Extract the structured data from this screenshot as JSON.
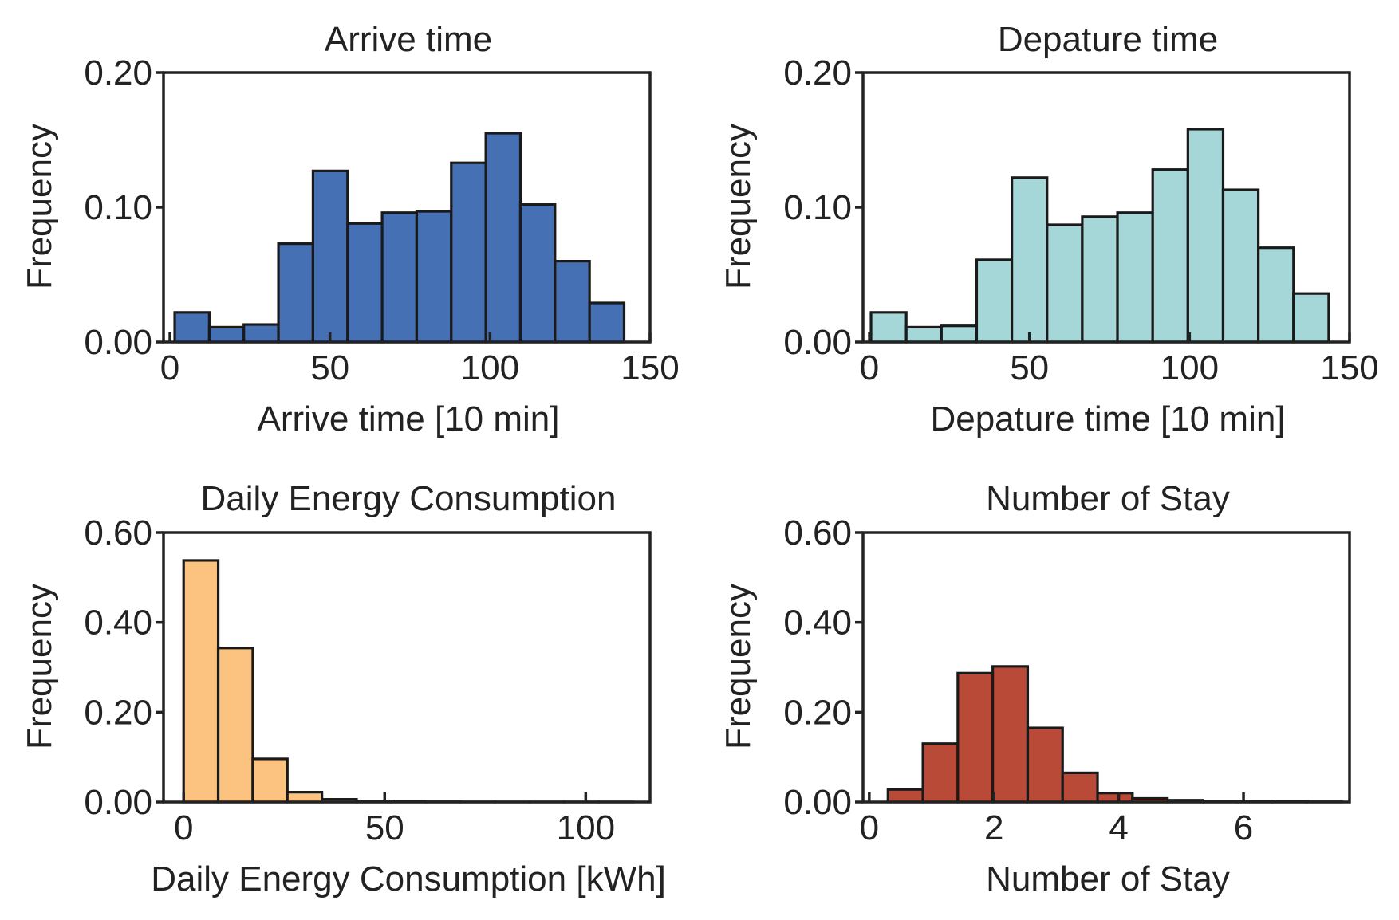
{
  "chart_data": [
    {
      "type": "bar",
      "title": "Arrive time",
      "xlabel": "Arrive time [10 min]",
      "ylabel": "Frequency",
      "xlim": [
        -2,
        150
      ],
      "ylim": [
        0,
        0.2
      ],
      "xticks": [
        "0",
        "50",
        "100",
        "150"
      ],
      "xtick_values": [
        0,
        50,
        100,
        150
      ],
      "yticks": [
        "0.00",
        "0.10",
        "0.20"
      ],
      "ytick_values": [
        0,
        0.1,
        0.2
      ],
      "color": "#4570b4",
      "grid": false,
      "bin_edges": [
        1.5,
        12.3,
        23.1,
        33.9,
        44.7,
        55.5,
        66.3,
        77.1,
        87.9,
        98.7,
        109.5,
        120.3,
        131.1,
        141.9
      ],
      "values": [
        0.022,
        0.011,
        0.013,
        0.073,
        0.127,
        0.088,
        0.096,
        0.097,
        0.133,
        0.155,
        0.102,
        0.06,
        0.029
      ]
    },
    {
      "type": "bar",
      "title": "Depature time",
      "xlabel": "Depature time [10 min]",
      "ylabel": "Frequency",
      "xlim": [
        -2,
        150
      ],
      "ylim": [
        0,
        0.2
      ],
      "xticks": [
        "0",
        "50",
        "100",
        "150"
      ],
      "xtick_values": [
        0,
        50,
        100,
        150
      ],
      "yticks": [
        "0.00",
        "0.10",
        "0.20"
      ],
      "ytick_values": [
        0,
        0.1,
        0.2
      ],
      "color": "#a5d6d8",
      "grid": false,
      "bin_edges": [
        0.5,
        11.5,
        22.5,
        33.5,
        44.5,
        55.5,
        66.5,
        77.5,
        88.5,
        99.5,
        110.5,
        121.5,
        132.5,
        143.5
      ],
      "values": [
        0.022,
        0.011,
        0.012,
        0.061,
        0.122,
        0.087,
        0.093,
        0.096,
        0.128,
        0.158,
        0.113,
        0.07,
        0.036
      ]
    },
    {
      "type": "bar",
      "title": "Daily Energy Consumption",
      "xlabel": "Daily Energy Consumption [kWh]",
      "ylabel": "Frequency",
      "xlim": [
        -5,
        116
      ],
      "ylim": [
        0,
        0.6
      ],
      "xticks": [
        "0",
        "50",
        "100"
      ],
      "xtick_values": [
        0,
        50,
        100
      ],
      "yticks": [
        "0.00",
        "0.20",
        "0.40",
        "0.60"
      ],
      "ytick_values": [
        0,
        0.2,
        0.4,
        0.6
      ],
      "color": "#fbc37f",
      "grid": false,
      "bin_edges": [
        0,
        8.6,
        17.2,
        25.8,
        34.4,
        43,
        51.6,
        60.2,
        68.8,
        77.4,
        86,
        94.6,
        103.2,
        111.8
      ],
      "values": [
        0.538,
        0.343,
        0.096,
        0.022,
        0.006,
        0.002,
        0.001,
        0.0005,
        0.0003,
        0.0002,
        0.0002,
        0.0002,
        0.0002
      ]
    },
    {
      "type": "bar",
      "title": "Number of Stay",
      "xlabel": "Number of Stay",
      "ylabel": "Frequency",
      "xlim": [
        -0.1,
        7.7
      ],
      "ylim": [
        0,
        0.6
      ],
      "xticks": [
        "0",
        "2",
        "4",
        "6"
      ],
      "xtick_values": [
        0,
        2,
        4,
        6
      ],
      "yticks": [
        "0.00",
        "0.20",
        "0.40",
        "0.60"
      ],
      "ytick_values": [
        0,
        0.2,
        0.4,
        0.6
      ],
      "color": "#b94a37",
      "grid": false,
      "bin_edges": [
        0.3,
        0.86,
        1.42,
        1.98,
        2.54,
        3.1,
        3.66,
        4.22,
        4.78,
        5.34,
        5.9,
        6.46,
        7.02,
        7.58
      ],
      "values": [
        0.028,
        0.13,
        0.287,
        0.302,
        0.165,
        0.065,
        0.02,
        0.008,
        0.004,
        0.002,
        0.001,
        0.001,
        0.0005
      ]
    }
  ]
}
